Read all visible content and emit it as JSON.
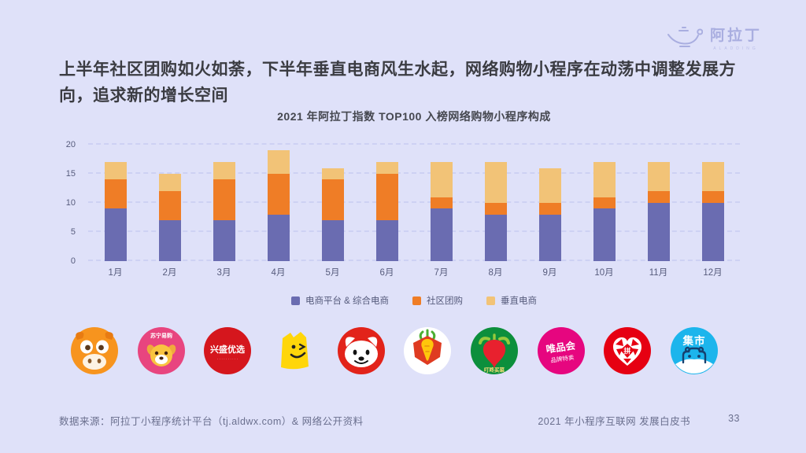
{
  "brand": {
    "name": "阿拉丁",
    "sub": "ALADDING"
  },
  "title": "上半年社区团购如火如荼，下半年垂直电商风生水起，网络购物小程序在动荡中调整发展方向，追求新的增长空间",
  "chart_data": {
    "type": "bar",
    "stacked": true,
    "title": "2021 年阿拉丁指数 TOP100 入榜网络购物小程序构成",
    "categories": [
      "1月",
      "2月",
      "3月",
      "4月",
      "5月",
      "6月",
      "7月",
      "8月",
      "9月",
      "10月",
      "11月",
      "12月"
    ],
    "series": [
      {
        "name": "电商平台 & 综合电商",
        "color": "#6a6cb1",
        "values": [
          9,
          7,
          7,
          8,
          7,
          7,
          9,
          8,
          8,
          9,
          10,
          10
        ]
      },
      {
        "name": "社区团购",
        "color": "#ef7d26",
        "values": [
          5,
          5,
          7,
          7,
          7,
          8,
          2,
          2,
          2,
          2,
          2,
          2
        ]
      },
      {
        "name": "垂直电商",
        "color": "#f2c377",
        "values": [
          3,
          3,
          3,
          4,
          2,
          2,
          6,
          7,
          6,
          6,
          5,
          5
        ]
      }
    ],
    "ylim": [
      0,
      20
    ],
    "yticks": [
      0,
      5,
      10,
      15,
      20
    ],
    "grid": "dashed horizontal",
    "legend_position": "bottom"
  },
  "logos": {
    "suning": "苏宁易购",
    "xingsheng": "兴盛优选",
    "xingsheng_tagline": "· · · · · · · · · ·",
    "dingdong": "叮咚买菜",
    "vipshop_line1": "唯品会",
    "vipshop_line2": "品牌特卖",
    "pin_char": "拼",
    "jishi": "集市"
  },
  "footer": {
    "source": "数据来源：阿拉丁小程序统计平台（tj.aldwx.com）& 网络公开资料",
    "report": "2021 年小程序互联网 发展白皮书",
    "page": "33"
  }
}
